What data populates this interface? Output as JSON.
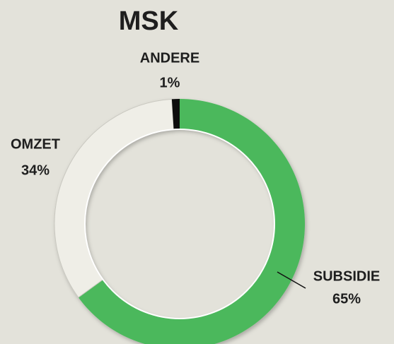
{
  "chart_data": {
    "type": "donut",
    "title": "MSK",
    "categories": [
      "SUBSIDIE",
      "OMZET",
      "ANDERE"
    ],
    "values": [
      65,
      34,
      1
    ],
    "value_labels": [
      "65%",
      "34%",
      "1%"
    ],
    "colors": [
      "#4cb85b",
      "#efeee7",
      "#111111"
    ]
  }
}
